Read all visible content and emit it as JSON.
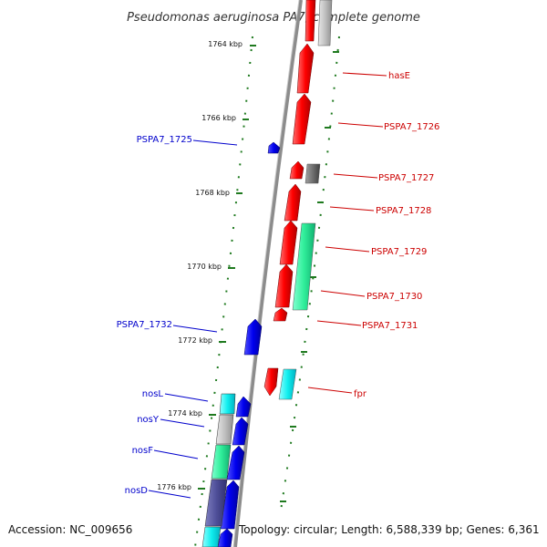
{
  "title": "Pseudomonas aeruginosa PA7, complete genome",
  "footer": {
    "accession": "Accession: NC_009656",
    "summary": "Topology: circular; Length: 6,588,339 bp; Genes: 6,361"
  },
  "colors": {
    "backbone": "#8c8c8c",
    "tick": "#1f7a1f",
    "forward_label": "#0000cc",
    "reverse_label": "#cc0000"
  },
  "ticks": [
    {
      "label": "1764 kbp"
    },
    {
      "label": "1766 kbp"
    },
    {
      "label": "1768 kbp"
    },
    {
      "label": "1770 kbp"
    },
    {
      "label": "1772 kbp"
    },
    {
      "label": "1774 kbp"
    },
    {
      "label": "1776 kbp"
    }
  ],
  "labels": {
    "left": [
      {
        "text": "PSPA7_1725"
      },
      {
        "text": "PSPA7_1732"
      },
      {
        "text": "nosL"
      },
      {
        "text": "nosY"
      },
      {
        "text": "nosF"
      },
      {
        "text": "nosD"
      }
    ],
    "right": [
      {
        "text": "hasE"
      },
      {
        "text": "PSPA7_1726"
      },
      {
        "text": "PSPA7_1727"
      },
      {
        "text": "PSPA7_1728"
      },
      {
        "text": "PSPA7_1729"
      },
      {
        "text": "PSPA7_1730"
      },
      {
        "text": "PSPA7_1731"
      },
      {
        "text": "fpr"
      }
    ]
  }
}
